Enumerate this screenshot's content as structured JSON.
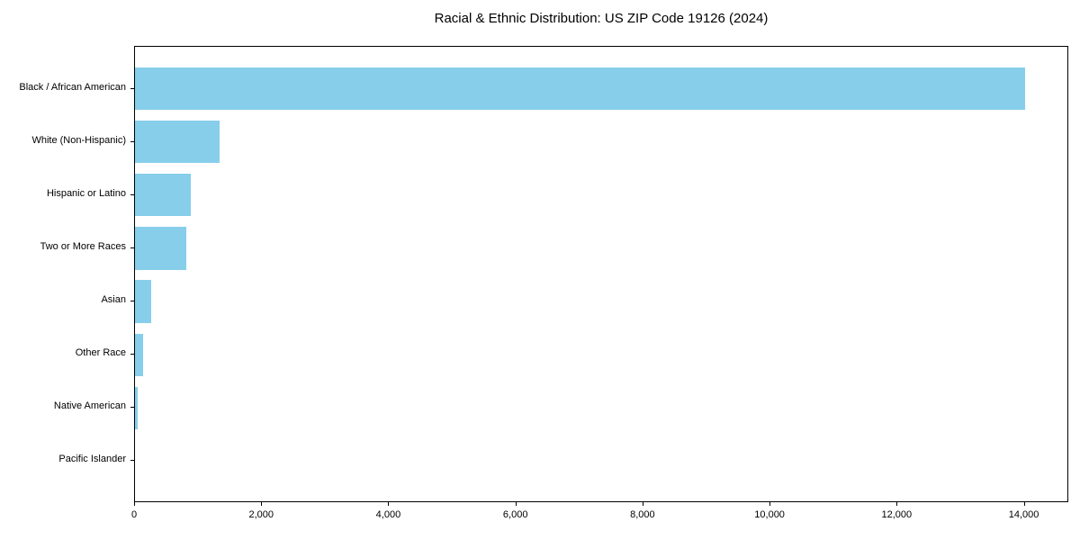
{
  "title": "Racial & Ethnic Distribution: US ZIP Code 19126 (2024)",
  "colors": {
    "bar": "#87CEEB",
    "axis": "#000000",
    "text": "#000000",
    "background": "#FFFFFF"
  },
  "chart_data": {
    "type": "bar",
    "orientation": "horizontal",
    "title": "Racial & Ethnic Distribution: US ZIP Code 19126 (2024)",
    "categories": [
      "Black / African American",
      "White (Non-Hispanic)",
      "Hispanic or Latino",
      "Two or More Races",
      "Asian",
      "Other Race",
      "Native American",
      "Pacific Islander"
    ],
    "values": [
      14000,
      1330,
      880,
      810,
      250,
      130,
      45,
      0
    ],
    "xlabel": "",
    "ylabel": "",
    "xlim": [
      0,
      14700
    ],
    "x_ticks": [
      0,
      2000,
      4000,
      6000,
      8000,
      10000,
      12000,
      14000
    ],
    "x_tick_labels": [
      "0",
      "2,000",
      "4,000",
      "6,000",
      "8,000",
      "10,000",
      "12,000",
      "14,000"
    ],
    "grid": false,
    "legend": null,
    "bar_color": "#87CEEB",
    "bar_relative_height": 0.8
  }
}
